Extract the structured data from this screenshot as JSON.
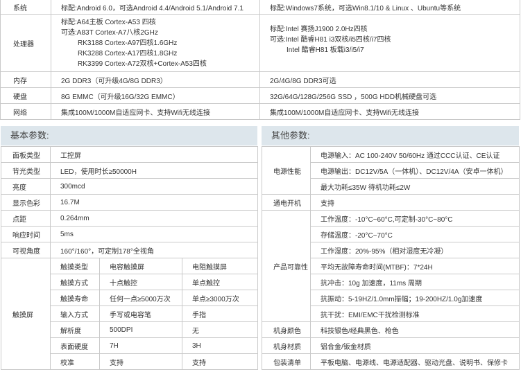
{
  "comparison": {
    "rows": [
      {
        "label": "系统",
        "android": [
          "标配:Android 6.0，可选Android 4.4/Android 5.1/Android 7.1"
        ],
        "windows": [
          "标配:Windows7系统，可选Win8.1/10 & Linux 、Ubuntu等系统"
        ]
      },
      {
        "label": "处理器",
        "android": [
          "标配:A64主板 Cortex-A53 四核",
          "可选:A83T Cortex-A7八核2GHz",
          "RK3188 Cortex-A97四核1.6GHz",
          "RK3288 Cortex-A17四核1.8GHz",
          "RK3399 Cortex-A72双核+Cortex-A53四核"
        ],
        "windows": [
          "标配:Intel 赛扬J1900 2.0Hz四核",
          "可选:Intel 酷睿H81 i3双核/i5四核/i7四核",
          "Intel 酷睿H81 板载i3/i5/i7"
        ]
      },
      {
        "label": "内存",
        "android": [
          "2G DDR3（可升级4G/8G DDR3）"
        ],
        "windows": [
          "2G/4G/8G DDR3可选"
        ]
      },
      {
        "label": "硬盘",
        "android": [
          "8G EMMC（可升级16G/32G EMMC）"
        ],
        "windows": [
          "32G/64G/128G/256G SSD ，500G HDD机械硬盘可选"
        ]
      },
      {
        "label": "网络",
        "android": [
          "集成100M/1000M自适应网卡、支持Wifi无线连接"
        ],
        "windows": [
          "集成100M/1000M自适应网卡、支持Wifi无线连接"
        ]
      }
    ]
  },
  "basic": {
    "title": "基本参数:",
    "rows": [
      {
        "label": "面板类型",
        "value": "工控屏"
      },
      {
        "label": "背光类型",
        "value": "LED，使用时长≥50000H"
      },
      {
        "label": "亮度",
        "value": "300mcd"
      },
      {
        "label": "显示色彩",
        "value": "16.7M"
      },
      {
        "label": "点距",
        "value": "0.264mm"
      },
      {
        "label": "响应时间",
        "value": "5ms"
      },
      {
        "label": "可视角度",
        "value": "160°/160°，可定制178°全视角"
      }
    ],
    "touch": {
      "label": "触摸屏",
      "rows": [
        [
          "触摸类型",
          "电容触摸屏",
          "电阻触摸屏"
        ],
        [
          "触摸方式",
          "十点触控",
          "单点触控"
        ],
        [
          "触摸寿命",
          "任何一点≥5000万次",
          "单点≥3000万次"
        ],
        [
          "输入方式",
          "手写或电容笔",
          "手指"
        ],
        [
          "解析度",
          "500DPI",
          "无"
        ],
        [
          "表面硬度",
          "7H",
          "3H"
        ],
        [
          "校准",
          "支持",
          "支持"
        ]
      ]
    }
  },
  "other": {
    "title": "其他参数:",
    "power": {
      "label": "电源性能",
      "items": [
        "电源输入：AC 100-240V  50/60Hz 通过CCC认证、CE认证",
        "电源输出：DC12V/5A（一体机）、DC12V/4A（安卓一体机）",
        "最大功耗≤35W  待机功耗≤2W"
      ]
    },
    "poweron": {
      "label": "通电开机",
      "value": "支持"
    },
    "reliability": {
      "label": "产品可靠性",
      "items": [
        "工作温度：-10°C~60°C,可定制-30°C~80°C",
        "存储温度：-20°C~70°C",
        "工作湿度：20%-95%（相对湿度无冷凝）",
        "平均无故障寿命时间(MTBF)：7*24H",
        "抗冲击：10g 加速度，11ms 周期",
        "抗振动：5-19HZ/1.0mm振幅；19-200HZ/1.0g加速度",
        "抗干扰：EMI/EMC干扰检测标准"
      ]
    },
    "color": {
      "label": "机身颜色",
      "value": "科技银色/经典黑色、枪色"
    },
    "material": {
      "label": "机身材质",
      "value": "铝合金/钣金材质"
    },
    "packing": {
      "label": "包装清单",
      "value": "平板电脑、电源线、电源适配器、驱动光盘、说明书、保修卡"
    }
  }
}
